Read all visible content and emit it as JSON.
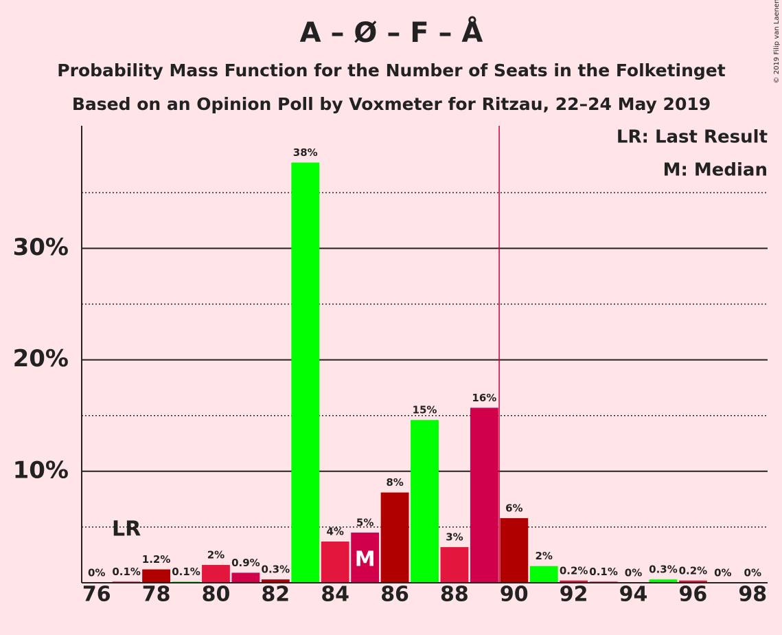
{
  "chart_data": {
    "type": "bar",
    "title": "A – Ø – F – Å",
    "subtitle": "Probability Mass Function for the Number of Seats in the Folketinget",
    "subtitle2": "Based on an Opinion Poll by Voxmeter for Ritzau, 22–24 May 2019",
    "copyright": "© 2019 Filip van Laenen",
    "legend": [
      "LR: Last Result",
      "M: Median"
    ],
    "x": [
      76,
      77,
      78,
      79,
      80,
      81,
      82,
      83,
      84,
      85,
      86,
      87,
      88,
      89,
      90,
      91,
      92,
      93,
      94,
      95,
      96,
      97,
      98
    ],
    "values": [
      0,
      0.1,
      1.2,
      0.1,
      1.6,
      0.9,
      0.3,
      37.7,
      3.7,
      4.5,
      8.1,
      14.6,
      3.2,
      15.7,
      5.8,
      1.5,
      0.2,
      0.1,
      0,
      0.3,
      0.2,
      0,
      0
    ],
    "value_labels": [
      "0%",
      "0.1%",
      "1.2%",
      "0.1%",
      "2%",
      "0.9%",
      "0.3%",
      "38%",
      "4%",
      "5%",
      "8%",
      "15%",
      "3%",
      "16%",
      "6%",
      "2%",
      "0.2%",
      "0.1%",
      "0%",
      "0.3%",
      "0.2%",
      "0%",
      "0%"
    ],
    "colors": [
      "#e3173e",
      "#d0004b",
      "#b00000",
      "#00ff00",
      "#e3173e",
      "#d0004b",
      "#b00000",
      "#00ff00",
      "#e3173e",
      "#d0004b",
      "#b00000",
      "#00ff00",
      "#e3173e",
      "#d0004b",
      "#b00000",
      "#00ff00",
      "#e3173e",
      "#d0004b",
      "#b00000",
      "#00ff00",
      "#e3173e",
      "#d0004b",
      "#b00000"
    ],
    "xlim": [
      75.5,
      98.5
    ],
    "xticks": [
      76,
      78,
      80,
      82,
      84,
      86,
      88,
      90,
      92,
      94,
      96,
      98
    ],
    "ylim": [
      0,
      41
    ],
    "yticks": [
      {
        "value": 10,
        "label": "10%"
      },
      {
        "value": 20,
        "label": "20%"
      },
      {
        "value": 30,
        "label": "30%"
      }
    ],
    "minor_yticks": [
      5,
      15,
      25,
      35
    ],
    "majority_line": 89.5,
    "last_result": {
      "x": 77,
      "label": "LR"
    },
    "median": {
      "x": 85,
      "label": "M"
    }
  }
}
